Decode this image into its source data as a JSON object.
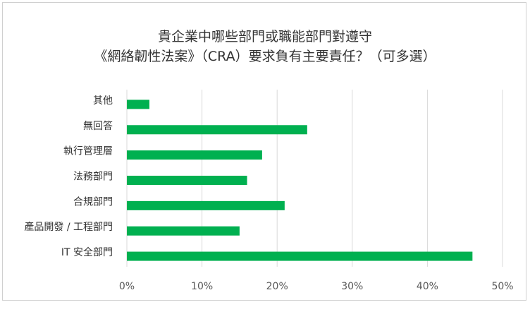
{
  "chart_data": {
    "type": "bar",
    "orientation": "horizontal",
    "title": "貴企業中哪些部門或職能部門對遵守",
    "subtitle": "《網絡韌性法案》（CRA）要求負有主要責任？（可多選）",
    "categories": [
      "其他",
      "無回答",
      "執行管理層",
      "法務部門",
      "合規部門",
      "產品開發 / 工程部門",
      "IT 安全部門"
    ],
    "values": [
      3,
      24,
      18,
      16,
      21,
      15,
      46
    ],
    "xlim": [
      0,
      50
    ],
    "xticks": [
      "0%",
      "10%",
      "20%",
      "30%",
      "40%",
      "50%"
    ],
    "grid": true,
    "bar_color": "#00b050",
    "xlabel": "",
    "ylabel": ""
  }
}
